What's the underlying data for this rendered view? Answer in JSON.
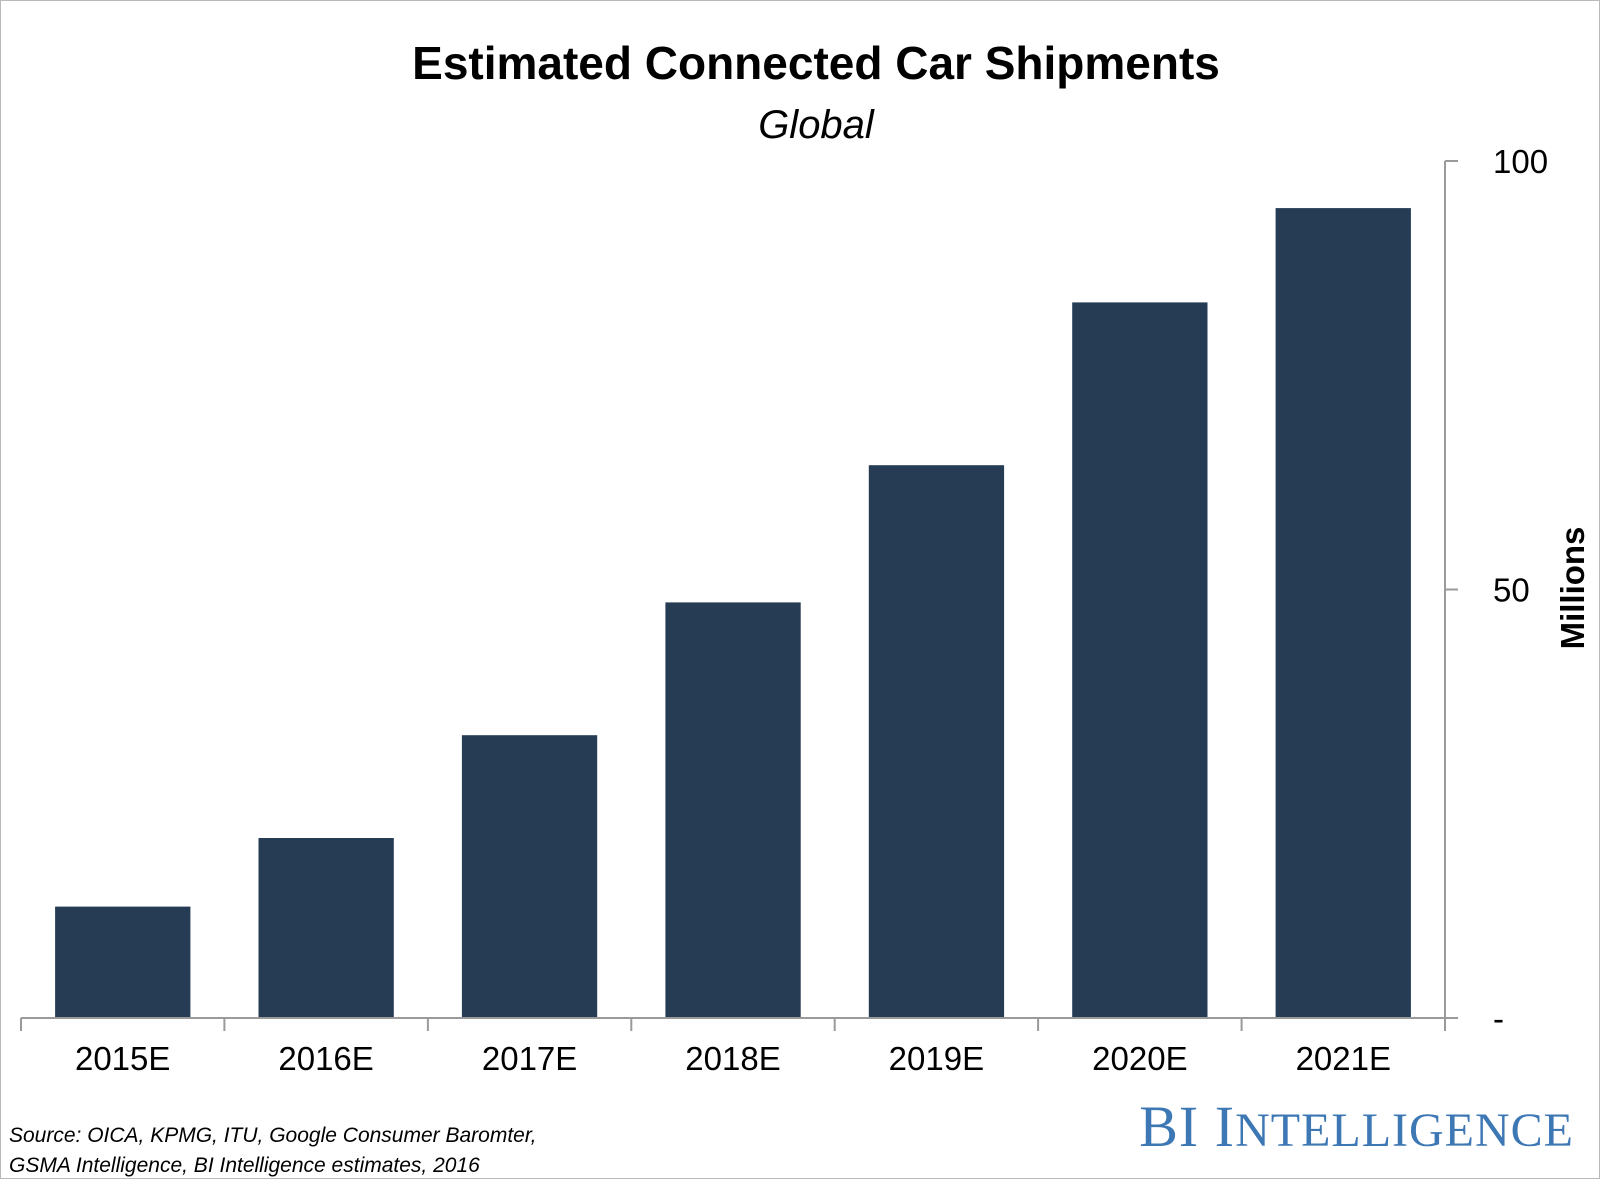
{
  "chart_data": {
    "type": "bar",
    "title": "Estimated Connected Car Shipments",
    "subtitle": "Global",
    "categories": [
      "2015E",
      "2016E",
      "2017E",
      "2018E",
      "2019E",
      "2020E",
      "2021E"
    ],
    "values": [
      13,
      21,
      33,
      48.5,
      64.5,
      83.5,
      94.5
    ],
    "ylabel": "Millions",
    "ylim": [
      0,
      100
    ],
    "yticks": [
      {
        "value": 100,
        "label": "100"
      },
      {
        "value": 50,
        "label": "50"
      },
      {
        "value": 0,
        "label": "-"
      }
    ],
    "y_axis_side": "right",
    "bar_color": "#263c54",
    "grid": false,
    "legend": "none"
  },
  "source": {
    "line1": "Source: OICA, KPMG, ITU, Google Consumer Baromter,",
    "line2": "GSMA Intelligence, BI Intelligence estimates, 2016"
  },
  "brand": {
    "text": "BI Intelligence",
    "color": "#3d78b5"
  }
}
